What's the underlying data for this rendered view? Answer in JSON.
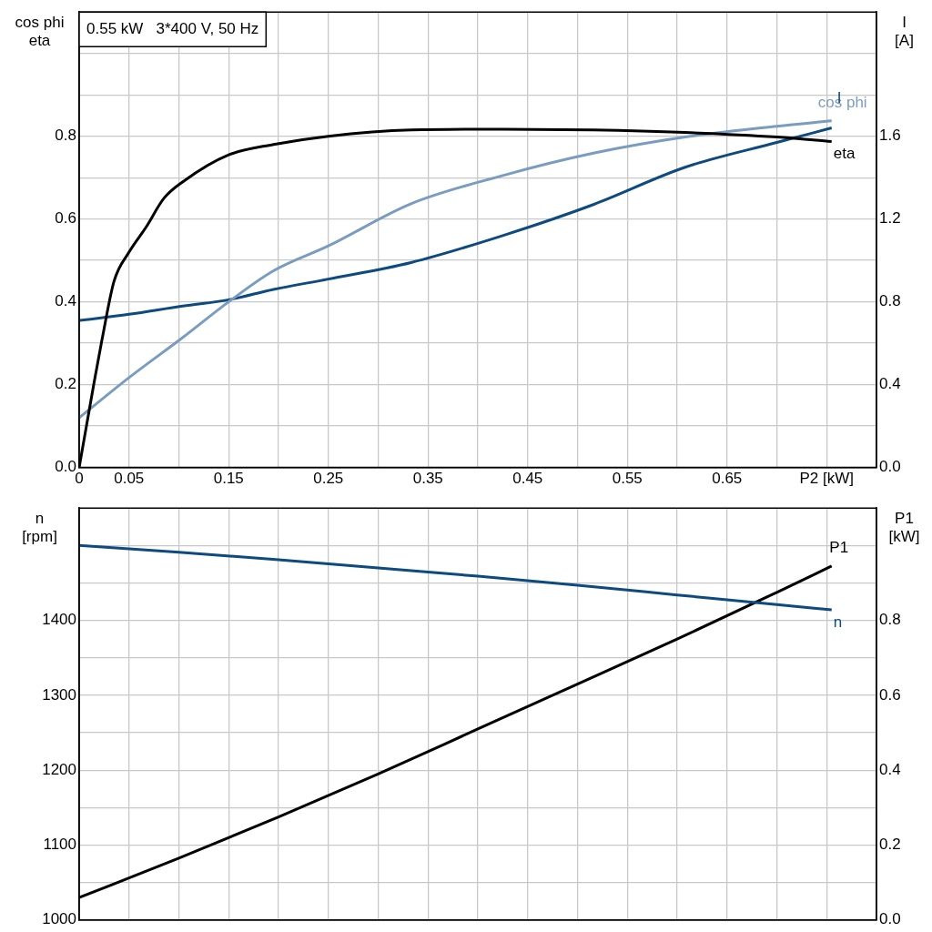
{
  "chart_data": [
    {
      "type": "line",
      "title": "0.55 kW   3*400 V, 50 Hz",
      "ylabel": "cos phi\neta",
      "y2label": "I\n[A]",
      "xlim": [
        0,
        0.8
      ],
      "xticks": [
        0,
        0.05,
        {
          "value": 0.1,
          "label": null
        },
        0.15,
        {
          "value": 0.2,
          "label": null
        },
        0.25,
        {
          "value": 0.3,
          "label": null
        },
        0.35,
        {
          "value": 0.4,
          "label": null
        },
        0.45,
        {
          "value": 0.5,
          "label": null
        },
        0.55,
        {
          "value": 0.6,
          "label": null
        },
        0.65,
        {
          "value": 0.7,
          "label": null
        },
        {
          "value": 0.75,
          "label": "P2 [kW]"
        },
        {
          "value": 0.8,
          "label": null
        }
      ],
      "ylim": [
        0,
        1.1
      ],
      "yticks": [
        {
          "value": 0,
          "label": "0.0"
        },
        {
          "value": 0.1,
          "label": null
        },
        0.2,
        {
          "value": 0.3,
          "label": null
        },
        0.4,
        {
          "value": 0.5,
          "label": null
        },
        0.6,
        {
          "value": 0.7,
          "label": null
        },
        0.8,
        {
          "value": 0.9,
          "label": null
        },
        {
          "value": 1.0,
          "label": null
        },
        {
          "value": 1.1,
          "label": null
        }
      ],
      "y2lim": [
        0,
        2.2
      ],
      "y2ticks": [
        {
          "value": 0,
          "label": "0.0"
        },
        0.4,
        0.8,
        1.2,
        1.6
      ],
      "grid": true,
      "legend": false,
      "series": [
        {
          "name": "eta",
          "color": "#000000",
          "x": [
            0,
            0.015,
            0.023,
            0.035,
            0.05,
            0.067,
            0.085,
            0.104,
            0.15,
            0.195,
            0.25,
            0.333,
            0.425,
            0.516,
            0.608,
            0.7,
            0.755
          ],
          "values": [
            0,
            0.206,
            0.31,
            0.45,
            0.52,
            0.58,
            0.65,
            0.69,
            0.755,
            0.78,
            0.8,
            0.815,
            0.817,
            0.815,
            0.809,
            0.798,
            0.787
          ]
        },
        {
          "name": "cos phi",
          "color": "#7a9cc0",
          "x": [
            0,
            0.05,
            0.104,
            0.15,
            0.195,
            0.25,
            0.333,
            0.425,
            0.516,
            0.608,
            0.7,
            0.755
          ],
          "values": [
            0.12,
            0.217,
            0.314,
            0.4,
            0.475,
            0.535,
            0.637,
            0.705,
            0.759,
            0.798,
            0.824,
            0.837
          ]
        },
        {
          "name": "I",
          "color": "#0d4a80",
          "axis": "y2",
          "x": [
            0,
            0.05,
            0.104,
            0.15,
            0.195,
            0.25,
            0.333,
            0.425,
            0.516,
            0.608,
            0.7,
            0.755
          ],
          "values": [
            0.71,
            0.74,
            0.78,
            0.81,
            0.86,
            0.91,
            0.99,
            1.12,
            1.27,
            1.45,
            1.57,
            1.64
          ]
        }
      ]
    },
    {
      "type": "line",
      "ylabel": "n\n[rpm]",
      "y2label": "P1\n[kW]",
      "xlim": [
        0,
        0.8
      ],
      "xticks": [
        0,
        0.05,
        0.1,
        0.15,
        0.2,
        0.25,
        0.3,
        0.35,
        0.4,
        0.45,
        0.5,
        0.55,
        0.6,
        0.65,
        0.7,
        0.75,
        0.8
      ],
      "tick_labels": "y",
      "ylim": [
        1000,
        1550
      ],
      "yticks": [
        1000,
        {
          "value": 1050,
          "label": null
        },
        1100,
        {
          "value": 1150,
          "label": null
        },
        1200,
        {
          "value": 1250,
          "label": null
        },
        1300,
        {
          "value": 1350,
          "label": null
        },
        1400,
        {
          "value": 1450,
          "label": null
        },
        {
          "value": 1500,
          "label": null
        },
        {
          "value": 1550,
          "label": null
        }
      ],
      "y2lim": [
        0,
        1.1
      ],
      "y2ticks": [
        {
          "value": 0,
          "label": "0.0"
        },
        0.2,
        0.4,
        0.6,
        0.8
      ],
      "grid": true,
      "legend": false,
      "series": [
        {
          "name": "n",
          "color": "#0d4a80",
          "x": [
            0,
            0.1,
            0.2,
            0.3,
            0.4,
            0.5,
            0.6,
            0.7,
            0.755
          ],
          "values": [
            1500,
            1491,
            1481,
            1470,
            1459,
            1447,
            1434,
            1421,
            1414
          ]
        },
        {
          "name": "P1",
          "color": "#000000",
          "axis": "y2",
          "x": [
            0,
            0.1,
            0.2,
            0.3,
            0.4,
            0.5,
            0.6,
            0.7,
            0.755
          ],
          "values": [
            0.06,
            0.165,
            0.275,
            0.39,
            0.51,
            0.63,
            0.75,
            0.875,
            0.945
          ]
        }
      ]
    }
  ]
}
